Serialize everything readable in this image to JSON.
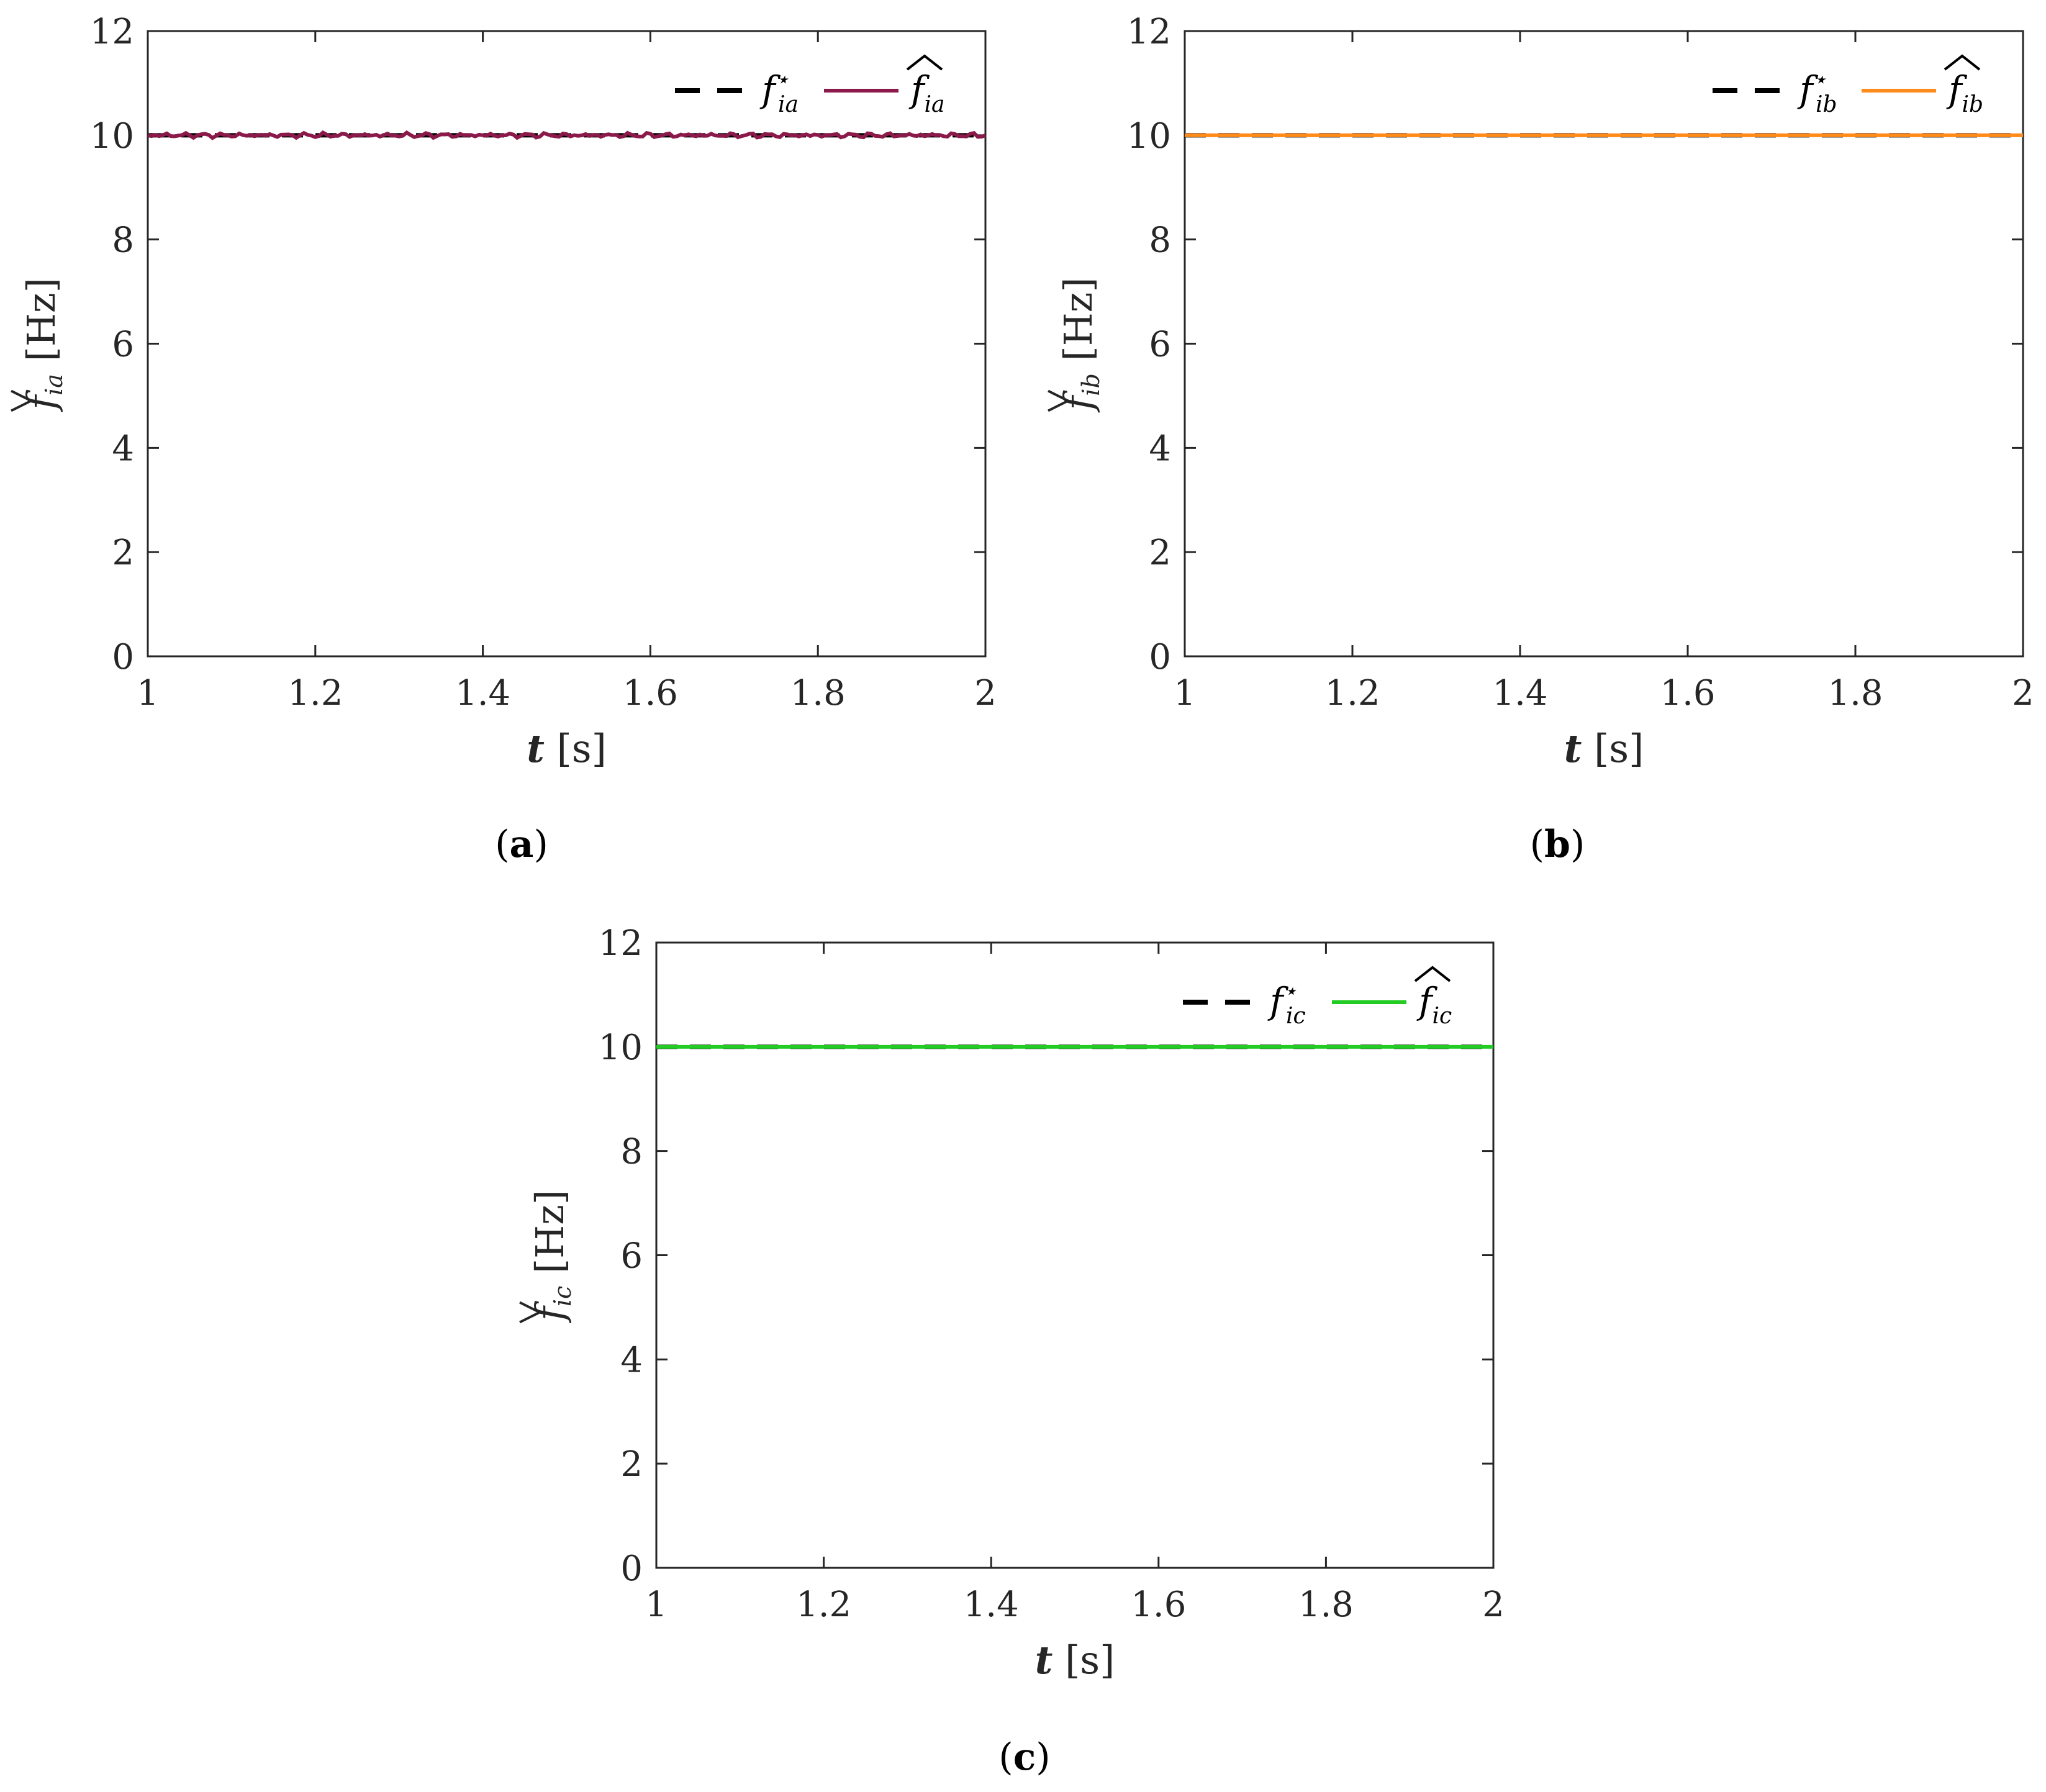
{
  "chart_data": [
    {
      "type": "line",
      "panel_label": "a",
      "xlabel_var": "t",
      "xlabel_unit": "[s]",
      "ylabel_var": "f",
      "ylabel_sub": "ia",
      "ylabel_unit": "[Hz]",
      "xlim": [
        1,
        2
      ],
      "ylim": [
        0,
        12
      ],
      "xticks": [
        "1",
        "1.2",
        "1.4",
        "1.6",
        "1.8",
        "2"
      ],
      "yticks": [
        "0",
        "2",
        "4",
        "6",
        "8",
        "10",
        "12"
      ],
      "grid": false,
      "legend_position": "top-right",
      "series": [
        {
          "name": "f*_ia",
          "legend_main": "f",
          "legend_sup": "⋆",
          "legend_sub": "ia",
          "style": "dashed",
          "color": "#000000",
          "values": [
            [
              1,
              10
            ],
            [
              2,
              10
            ]
          ]
        },
        {
          "name": "f̂_ia",
          "legend_main": "f",
          "legend_hat": true,
          "legend_sub": "ia",
          "style": "solid",
          "color": "#8B1A4B",
          "noisy": true,
          "values": [
            [
              1,
              10
            ],
            [
              2,
              10
            ]
          ]
        }
      ]
    },
    {
      "type": "line",
      "panel_label": "b",
      "xlabel_var": "t",
      "xlabel_unit": "[s]",
      "ylabel_var": "f",
      "ylabel_sub": "ib",
      "ylabel_unit": "[Hz]",
      "xlim": [
        1,
        2
      ],
      "ylim": [
        0,
        12
      ],
      "xticks": [
        "1",
        "1.2",
        "1.4",
        "1.6",
        "1.8",
        "2"
      ],
      "yticks": [
        "0",
        "2",
        "4",
        "6",
        "8",
        "10",
        "12"
      ],
      "grid": false,
      "legend_position": "top-right",
      "series": [
        {
          "name": "f*_ib",
          "legend_main": "f",
          "legend_sup": "⋆",
          "legend_sub": "ib",
          "style": "dashed",
          "color": "#000000",
          "values": [
            [
              1,
              10
            ],
            [
              2,
              10
            ]
          ]
        },
        {
          "name": "f̂_ib",
          "legend_main": "f",
          "legend_hat": true,
          "legend_sub": "ib",
          "style": "solid",
          "color": "#FF8C1A",
          "noisy": false,
          "values": [
            [
              1,
              10
            ],
            [
              2,
              10
            ]
          ]
        }
      ]
    },
    {
      "type": "line",
      "panel_label": "c",
      "xlabel_var": "t",
      "xlabel_unit": "[s]",
      "ylabel_var": "f",
      "ylabel_sub": "ic",
      "ylabel_unit": "[Hz]",
      "xlim": [
        1,
        2
      ],
      "ylim": [
        0,
        12
      ],
      "xticks": [
        "1",
        "1.2",
        "1.4",
        "1.6",
        "1.8",
        "2"
      ],
      "yticks": [
        "0",
        "2",
        "4",
        "6",
        "8",
        "10",
        "12"
      ],
      "grid": false,
      "legend_position": "top-right",
      "series": [
        {
          "name": "f*_ic",
          "legend_main": "f",
          "legend_sup": "⋆",
          "legend_sub": "ic",
          "style": "dashed",
          "color": "#000000",
          "values": [
            [
              1,
              10
            ],
            [
              2,
              10
            ]
          ]
        },
        {
          "name": "f̂_ic",
          "legend_main": "f",
          "legend_hat": true,
          "legend_sub": "ic",
          "style": "solid",
          "color": "#22CC22",
          "noisy": false,
          "values": [
            [
              1,
              10
            ],
            [
              2,
              10
            ]
          ]
        }
      ]
    }
  ]
}
